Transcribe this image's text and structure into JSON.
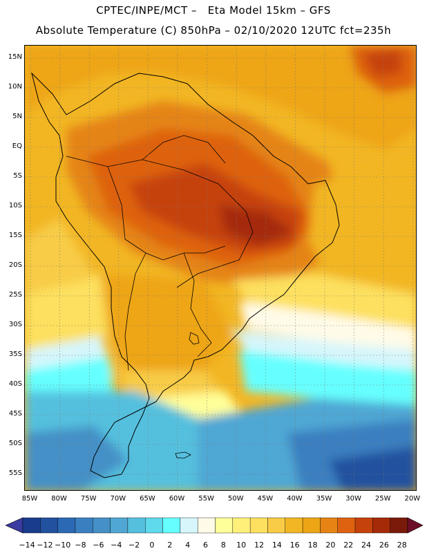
{
  "header": {
    "line1": "CPTEC/INPE/MCT –   Eta Model 15km – GFS",
    "line2": "Absolute Temperature (C) 850hPa – 02/10/2020 12UTC fct=235h"
  },
  "axes": {
    "lat_labels": [
      "15N",
      "10N",
      "5N",
      "EQ",
      "5S",
      "10S",
      "15S",
      "20S",
      "25S",
      "30S",
      "35S",
      "40S",
      "45S",
      "50S",
      "55S"
    ],
    "lon_labels": [
      "85W",
      "80W",
      "75W",
      "70W",
      "65W",
      "60W",
      "55W",
      "50W",
      "45W",
      "40W",
      "35W",
      "30W",
      "25W",
      "20W"
    ]
  },
  "colorbar": {
    "labels": [
      "-14",
      "-12",
      "-10",
      "-8",
      "-6",
      "-4",
      "-2",
      "0",
      "2",
      "4",
      "6",
      "8",
      "10",
      "12",
      "14",
      "16",
      "18",
      "20",
      "22",
      "24",
      "26",
      "28"
    ],
    "colors": [
      "#1a3c8c",
      "#22519f",
      "#2b69b4",
      "#3a7fc0",
      "#4590c6",
      "#50a7d4",
      "#55c0de",
      "#5fd9ec",
      "#66ffff",
      "#d6f6fb",
      "#fffbe8",
      "#ffff99",
      "#fff07a",
      "#fde05f",
      "#f8cc46",
      "#f2b624",
      "#eea515",
      "#e58414",
      "#de6210",
      "#c6420b",
      "#a52a08",
      "#7a1a0a"
    ],
    "under_color": "#3a3aa0",
    "over_color": "#6e0f28"
  }
}
